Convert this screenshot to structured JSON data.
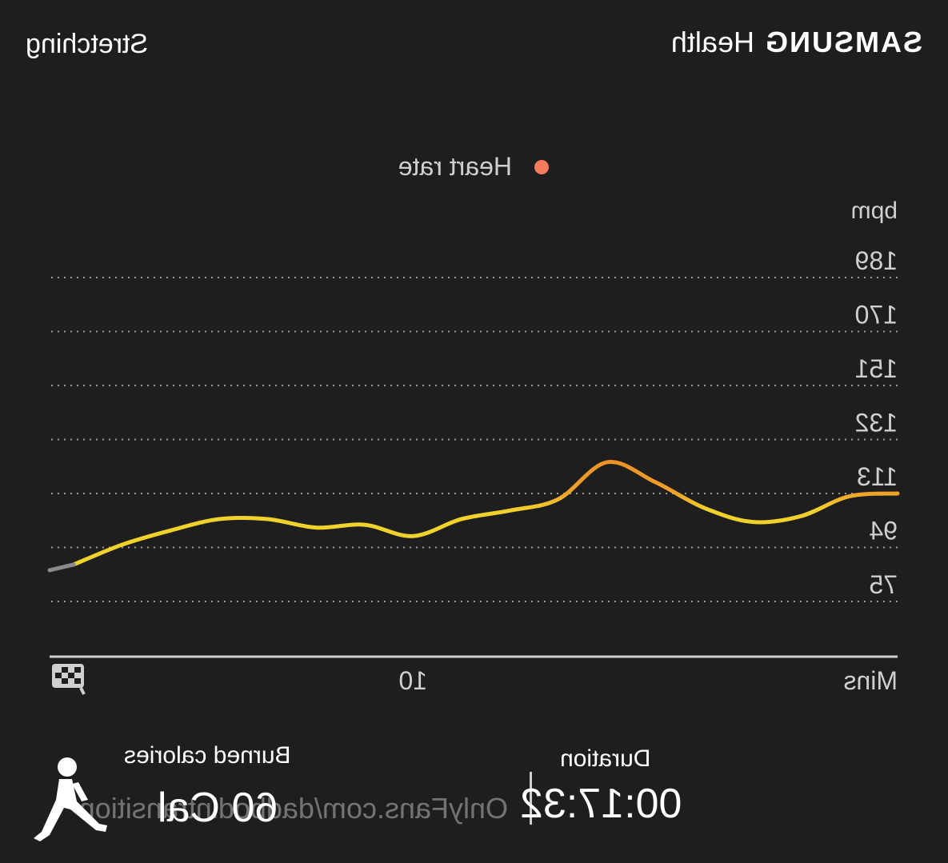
{
  "header": {
    "brand": "SAMSUNG",
    "brand_app": "Health",
    "activity": "Stretching"
  },
  "chart_data": {
    "type": "line",
    "title": "",
    "legend": [
      "Heart rate"
    ],
    "legend_color": "#f47b5e",
    "y_unit": "bpm",
    "y_ticks": [
      75,
      94,
      113,
      132,
      151,
      170,
      189
    ],
    "ylim": [
      75,
      189
    ],
    "x_unit": "Mins",
    "x_ticks": [
      10
    ],
    "xlim": [
      0,
      17.5
    ],
    "grid": true,
    "series": [
      {
        "name": "Heart rate",
        "x": [
          0,
          1,
          2,
          3,
          4,
          5,
          6,
          7,
          8,
          9,
          10,
          11,
          12,
          13,
          14,
          15,
          16,
          17,
          17.5
        ],
        "y": [
          113,
          112,
          105,
          103,
          108,
          117,
          124,
          111,
          107,
          104,
          98,
          102,
          101,
          104,
          104,
          100,
          95,
          88,
          86
        ]
      }
    ],
    "colors": {
      "line_high": "#ec8a28",
      "line_low": "#f1d12c",
      "line_end": "#8a8a8a"
    }
  },
  "stats": {
    "duration_label": "Duration",
    "duration_value": "00:17:32",
    "calories_label": "Burned calories",
    "calories_value": "60 Cal"
  },
  "watermark": "OnlyFans.com/dadbodintransition",
  "icons": [
    "finish-flag-icon",
    "stretching-person-icon"
  ]
}
